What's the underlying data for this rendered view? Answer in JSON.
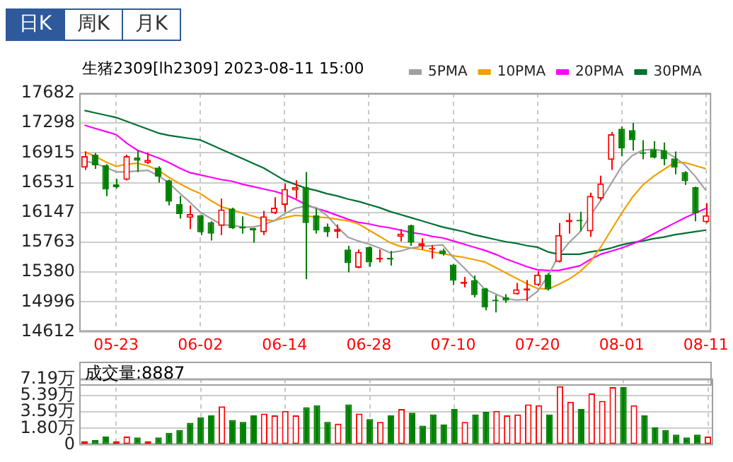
{
  "chart_data": [
    {
      "type": "candlestick",
      "title": "生猪2309[lh2309] 2023-08-11 15:00",
      "annotations": [
        "日K",
        "周K",
        "月K"
      ],
      "categories": [
        null,
        null,
        null,
        "05-23",
        null,
        null,
        null,
        null,
        null,
        null,
        null,
        "06-02",
        null,
        null,
        null,
        null,
        null,
        null,
        null,
        "06-14",
        null,
        null,
        null,
        null,
        null,
        null,
        null,
        "06-28",
        null,
        null,
        null,
        null,
        null,
        null,
        null,
        "07-10",
        null,
        null,
        null,
        null,
        null,
        null,
        null,
        "07-20",
        null,
        null,
        null,
        null,
        null,
        null,
        null,
        "08-01",
        null,
        null,
        null,
        null,
        null,
        null,
        null,
        "08-11"
      ],
      "ohlc": [
        [
          16726,
          16931,
          16696,
          16872
        ],
        [
          16890,
          16913,
          16708,
          16755
        ],
        [
          16755,
          16767,
          16356,
          16444
        ],
        [
          16509,
          16579,
          16456,
          16473
        ],
        [
          16567,
          16890,
          16560,
          16872
        ],
        [
          16855,
          16943,
          16667,
          16814
        ],
        [
          16784,
          16919,
          16773,
          16826
        ],
        [
          16726,
          16743,
          16532,
          16608
        ],
        [
          16561,
          16570,
          16239,
          16286
        ],
        [
          16256,
          16362,
          16069,
          16127
        ],
        [
          16080,
          16239,
          15934,
          16127
        ],
        [
          16110,
          16115,
          15857,
          15893
        ],
        [
          16022,
          16033,
          15787,
          15875
        ],
        [
          15975,
          16327,
          15857,
          16186
        ],
        [
          16198,
          16209,
          15934,
          15945
        ],
        [
          15963,
          16098,
          15875,
          15940
        ],
        [
          15945,
          15950,
          15758,
          15916
        ],
        [
          15893,
          16168,
          15857,
          16098
        ],
        [
          16139,
          16344,
          16127,
          16209
        ],
        [
          16245,
          16520,
          16151,
          16450
        ],
        [
          16432,
          16561,
          16327,
          16473
        ],
        [
          16473,
          16667,
          15288,
          16010
        ],
        [
          16110,
          16198,
          15875,
          15916
        ],
        [
          15963,
          16004,
          15834,
          15893
        ],
        [
          15899,
          15993,
          15816,
          15934
        ],
        [
          15670,
          15717,
          15376,
          15494
        ],
        [
          15435,
          15670,
          15429,
          15640
        ],
        [
          15699,
          15711,
          15447,
          15505
        ],
        [
          15540,
          15670,
          15505,
          15564
        ],
        [
          15564,
          15652,
          15464,
          15540
        ],
        [
          15834,
          15934,
          15775,
          15875
        ],
        [
          15981,
          15990,
          15717,
          15758
        ],
        [
          15717,
          15816,
          15670,
          15752
        ],
        [
          15670,
          15728,
          15552,
          15687
        ],
        [
          15658,
          15681,
          15593,
          15611
        ],
        [
          15476,
          15482,
          15212,
          15271
        ],
        [
          15230,
          15318,
          15183,
          15253
        ],
        [
          15277,
          15335,
          15054,
          15083
        ],
        [
          15171,
          15177,
          14889,
          14925
        ],
        [
          15024,
          15083,
          14860,
          15007
        ],
        [
          15054,
          15095,
          14983,
          15013
        ],
        [
          15095,
          15241,
          15090,
          15159
        ],
        [
          15142,
          15277,
          15007,
          15171
        ],
        [
          15212,
          15394,
          15200,
          15347
        ],
        [
          15347,
          15365,
          15142,
          15159
        ],
        [
          15511,
          16010,
          15505,
          15857
        ],
        [
          16022,
          16139,
          15875,
          16051
        ],
        [
          16051,
          16157,
          15904,
          16033
        ],
        [
          15904,
          16403,
          15834,
          16362
        ],
        [
          16327,
          16620,
          16303,
          16520
        ],
        [
          16825,
          17183,
          16696,
          17154
        ],
        [
          17224,
          17254,
          16872,
          16972
        ],
        [
          17207,
          17301,
          16943,
          17078
        ],
        [
          16919,
          17078,
          16831,
          16902
        ],
        [
          16960,
          17066,
          16843,
          16855
        ],
        [
          16949,
          17048,
          16755,
          16831
        ],
        [
          16843,
          16931,
          16638,
          16726
        ],
        [
          16667,
          16679,
          16503,
          16550
        ],
        [
          16473,
          16479,
          16033,
          16139
        ],
        [
          16022,
          16268,
          16010,
          16110
        ]
      ],
      "colors": [
        "#ff0000",
        "#008000",
        "#008000",
        "#008000",
        "#ff0000",
        "#008000",
        "#ff0000",
        "#008000",
        "#008000",
        "#008000",
        "#ff0000",
        "#008000",
        "#008000",
        "#ff0000",
        "#008000",
        "#008000",
        "#008000",
        "#ff0000",
        "#ff0000",
        "#ff0000",
        "#ff0000",
        "#008000",
        "#008000",
        "#008000",
        "#ff0000",
        "#008000",
        "#ff0000",
        "#008000",
        "#ff0000",
        "#008000",
        "#ff0000",
        "#008000",
        "#ff0000",
        "#ff0000",
        "#008000",
        "#008000",
        "#ff0000",
        "#008000",
        "#008000",
        "#008000",
        "#008000",
        "#ff0000",
        "#ff0000",
        "#ff0000",
        "#008000",
        "#ff0000",
        "#ff0000",
        "#008000",
        "#ff0000",
        "#ff0000",
        "#ff0000",
        "#008000",
        "#008000",
        "#008000",
        "#008000",
        "#008000",
        "#008000",
        "#008000",
        "#008000",
        "#ff0000"
      ],
      "series": [
        {
          "name": "5PMA",
          "type": "line",
          "color": "#a0a0a0",
          "values": [
            16810,
            16780,
            16730,
            16670,
            16670,
            16680,
            16690,
            16620,
            16530,
            16400,
            16280,
            16150,
            16070,
            15990,
            15980,
            15960,
            15960,
            15990,
            16040,
            16130,
            16200,
            16230,
            16210,
            16110,
            15960,
            15830,
            15780,
            15740,
            15690,
            15630,
            15650,
            15690,
            15710,
            15720,
            15730,
            15570,
            15440,
            15300,
            15160,
            15100,
            15040,
            15020,
            15030,
            15130,
            15330,
            15590,
            15760,
            15890,
            16100,
            16300,
            16520,
            16740,
            16880,
            16950,
            16960,
            16940,
            16860,
            16760,
            16610,
            16430
          ]
        },
        {
          "name": "10PMA",
          "type": "line",
          "color": "#f0a000",
          "values": [
            16930,
            16870,
            16800,
            16740,
            16770,
            16780,
            16750,
            16690,
            16600,
            16520,
            16450,
            16390,
            16300,
            16220,
            16180,
            16140,
            16100,
            16060,
            16040,
            16080,
            16110,
            16100,
            16090,
            16080,
            16060,
            16040,
            16000,
            15920,
            15840,
            15760,
            15710,
            15690,
            15670,
            15640,
            15620,
            15590,
            15570,
            15540,
            15510,
            15440,
            15370,
            15300,
            15230,
            15170,
            15160,
            15220,
            15290,
            15380,
            15510,
            15700,
            15920,
            16140,
            16340,
            16500,
            16610,
            16700,
            16790,
            16790,
            16750,
            16710
          ]
        },
        {
          "name": "20PMA",
          "type": "line",
          "color": "#ff00ff",
          "values": [
            17270,
            17230,
            17190,
            17150,
            17040,
            16950,
            16900,
            16850,
            16790,
            16720,
            16660,
            16630,
            16600,
            16570,
            16550,
            16510,
            16480,
            16450,
            16420,
            16380,
            16320,
            16250,
            16200,
            16160,
            16110,
            16060,
            16020,
            16000,
            15970,
            15950,
            15920,
            15890,
            15870,
            15840,
            15820,
            15780,
            15740,
            15700,
            15660,
            15610,
            15550,
            15500,
            15450,
            15410,
            15400,
            15400,
            15430,
            15460,
            15540,
            15610,
            15650,
            15690,
            15740,
            15800,
            15870,
            15940,
            16010,
            16080,
            16140,
            16200
          ]
        },
        {
          "name": "30PMA",
          "type": "line",
          "color": "#007030",
          "values": [
            17460,
            17430,
            17400,
            17370,
            17320,
            17270,
            17220,
            17170,
            17140,
            17120,
            17100,
            17080,
            17020,
            16960,
            16900,
            16840,
            16780,
            16720,
            16640,
            16560,
            16510,
            16460,
            16430,
            16390,
            16360,
            16320,
            16290,
            16250,
            16210,
            16160,
            16120,
            16080,
            16040,
            16000,
            15960,
            15930,
            15900,
            15860,
            15830,
            15800,
            15770,
            15750,
            15720,
            15700,
            15640,
            15610,
            15610,
            15610,
            15640,
            15660,
            15690,
            15730,
            15760,
            15780,
            15810,
            15830,
            15860,
            15880,
            15900,
            15920
          ]
        }
      ],
      "ylim": [
        14612,
        17682
      ],
      "yticks": [
        14612,
        14996,
        15380,
        15763,
        16147,
        16531,
        16915,
        17298,
        17682
      ],
      "grid": true,
      "legend": "top right"
    },
    {
      "type": "bar",
      "title": "成交量:8887",
      "categories": [
        null,
        null,
        null,
        null,
        null,
        null,
        null,
        null,
        null,
        null,
        null,
        null,
        null,
        null,
        null,
        null,
        null,
        null,
        null,
        null,
        null,
        null,
        null,
        null,
        null,
        null,
        null,
        null,
        null,
        null,
        null,
        null,
        null,
        null,
        null,
        null,
        null,
        null,
        null,
        null,
        null,
        null,
        null,
        null,
        null,
        null,
        null,
        null,
        null,
        null,
        null,
        null,
        null,
        null,
        null,
        null,
        null,
        null,
        null,
        null
      ],
      "values": [
        0.4,
        0.5,
        0.9,
        0.4,
        0.9,
        0.8,
        0.4,
        0.8,
        1.3,
        1.6,
        2.4,
        3.0,
        3.2,
        4.2,
        2.7,
        2.5,
        3.2,
        3.4,
        3.2,
        3.7,
        3.2,
        4.1,
        4.3,
        2.5,
        2.3,
        4.4,
        3.4,
        2.8,
        2.5,
        3.2,
        3.9,
        3.5,
        2.1,
        3.3,
        2.2,
        3.9,
        2.5,
        3.3,
        3.6,
        3.7,
        3.2,
        3.3,
        4.4,
        4.3,
        3.3,
        6.4,
        4.7,
        3.9,
        5.6,
        4.8,
        6.3,
        6.3,
        4.3,
        3.2,
        1.9,
        1.6,
        1.1,
        0.8,
        1.1,
        0.89
      ],
      "colors": [
        "#ff0000",
        "#008000",
        "#008000",
        "#ff0000",
        "#ff0000",
        "#008000",
        "#ff0000",
        "#008000",
        "#008000",
        "#008000",
        "#008000",
        "#008000",
        "#008000",
        "#ff0000",
        "#008000",
        "#008000",
        "#008000",
        "#ff0000",
        "#ff0000",
        "#ff0000",
        "#ff0000",
        "#008000",
        "#008000",
        "#008000",
        "#ff0000",
        "#008000",
        "#ff0000",
        "#008000",
        "#ff0000",
        "#008000",
        "#ff0000",
        "#008000",
        "#008000",
        "#008000",
        "#008000",
        "#008000",
        "#ff0000",
        "#008000",
        "#008000",
        "#ff0000",
        "#ff0000",
        "#ff0000",
        "#ff0000",
        "#ff0000",
        "#008000",
        "#ff0000",
        "#ff0000",
        "#008000",
        "#ff0000",
        "#ff0000",
        "#ff0000",
        "#008000",
        "#ff0000",
        "#008000",
        "#008000",
        "#008000",
        "#008000",
        "#008000",
        "#008000",
        "#ff0000"
      ],
      "ylim": [
        0,
        7.19
      ],
      "yticks": [
        0,
        {
          "value": 1.8,
          "label": "1.80万"
        },
        {
          "value": 3.59,
          "label": "3.59万"
        },
        {
          "value": 5.39,
          "label": "5.39万"
        },
        {
          "value": 7.19,
          "label": "7.19万"
        }
      ],
      "grid": true,
      "tick_labels": "y"
    }
  ]
}
